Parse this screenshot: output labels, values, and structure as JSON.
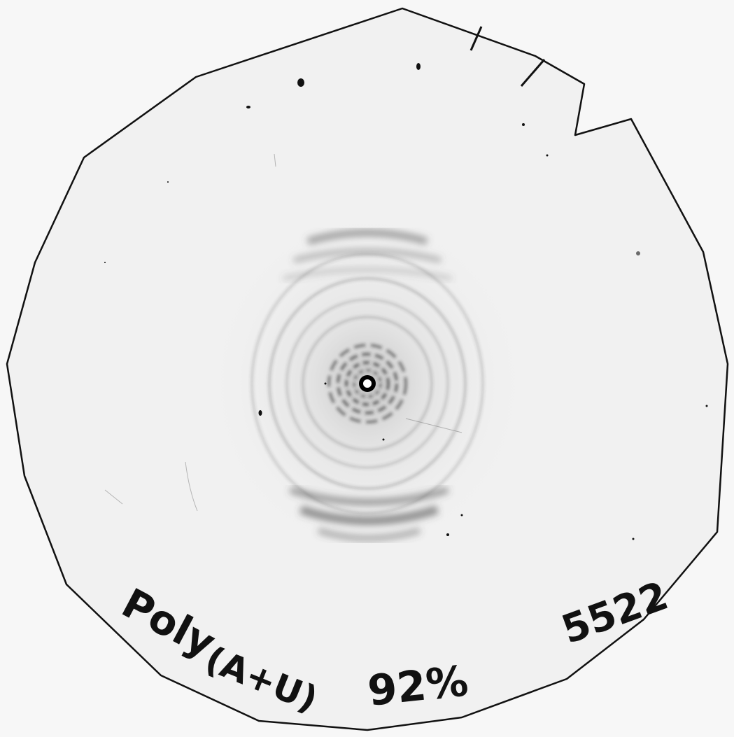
{
  "photo": {
    "subject": "x-ray-diffraction-film",
    "background_color": "#f7f7f7",
    "film_color": "#f0f0f0",
    "outline_color": "#111111",
    "ring_color": "#3a3a3a",
    "beam_stop_color": "#000000",
    "center_color": "#ffffff"
  },
  "annotations": {
    "sample_label": "Poly (A+U) 92%",
    "sample_name": "Poly",
    "sample_formula": "(A+U)",
    "humidity": "92%",
    "film_number": "5522"
  }
}
